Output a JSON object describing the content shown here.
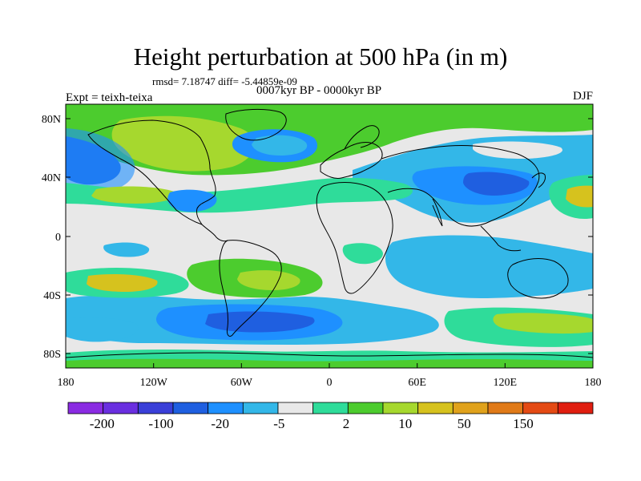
{
  "title": "Height perturbation at 500 hPa (in m)",
  "stats_line": "rmsd= 7.18747 diff= -5.44859e-09",
  "period": "0007kyr BP - 0000kyr BP",
  "experiment": "Expt = teixh-teixa",
  "season": "DJF",
  "map": {
    "lat_ticks": [
      "80N",
      "40N",
      "0",
      "40S",
      "80S"
    ],
    "lon_ticks": [
      "180",
      "120W",
      "60W",
      "0",
      "60E",
      "120E",
      "180"
    ]
  },
  "colorbar": {
    "colors": [
      "#8a2be2",
      "#6a2fe0",
      "#3a3fd8",
      "#1f5fe0",
      "#1e90ff",
      "#33b7e8",
      "#e8e8e8",
      "#2fdc9a",
      "#4ccc2e",
      "#a6d82e",
      "#d6c21e",
      "#e0a21c",
      "#e07a18",
      "#e44a14",
      "#e01e10"
    ],
    "labels": [
      "-200",
      "-100",
      "-20",
      "-5",
      "2",
      "10",
      "50",
      "150"
    ]
  },
  "colors": {
    "strong_neg": "#1f5fe0",
    "mid_neg": "#1e90ff",
    "weak_neg": "#33b7e8",
    "neutral": "#e8e8e8",
    "weak_pos": "#2fdc9a",
    "mid_pos": "#4ccc2e",
    "strong_pos": "#a6d82e",
    "stronger_pos": "#d6c21e"
  }
}
